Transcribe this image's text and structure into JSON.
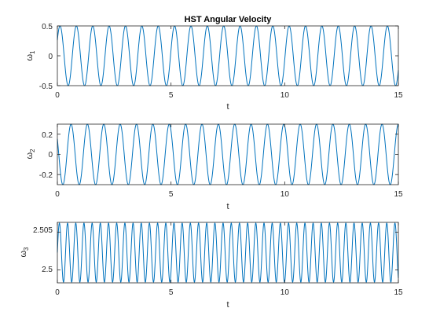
{
  "figure": {
    "background": "#ffffff",
    "axis_color": "#262626",
    "line_color": "#0072bd"
  },
  "chart_data": [
    {
      "type": "line",
      "title": "HST Angular Velocity",
      "xlabel": "t",
      "ylabel": "ω1",
      "ylabel_symbol": "ω",
      "ylabel_subscript": "1",
      "xlim": [
        0,
        15
      ],
      "ylim": [
        -0.5,
        0.5
      ],
      "xticks": [
        0,
        5,
        10,
        15
      ],
      "xtick_labels": [
        "0",
        "5",
        "10",
        "15"
      ],
      "yticks": [
        -0.5,
        0,
        0.5
      ],
      "ytick_labels": [
        "-0.5",
        "0",
        "0.5"
      ],
      "grid": false,
      "series": [
        {
          "kind": "sinusoid",
          "offset": 0,
          "amplitude": 0.5,
          "period": 0.72,
          "phase_at_t0": 0.55,
          "x_start": 0,
          "x_end": 15
        }
      ]
    },
    {
      "type": "line",
      "title": "",
      "xlabel": "t",
      "ylabel": "ω2",
      "ylabel_symbol": "ω",
      "ylabel_subscript": "2",
      "xlim": [
        0,
        15
      ],
      "ylim": [
        -0.3,
        0.3
      ],
      "xticks": [
        0,
        5,
        10,
        15
      ],
      "xtick_labels": [
        "0",
        "5",
        "10",
        "15"
      ],
      "yticks": [
        -0.2,
        0,
        0.2
      ],
      "ytick_labels": [
        "-0.2",
        "0",
        "0.2"
      ],
      "grid": false,
      "series": [
        {
          "kind": "sinusoid",
          "offset": 0,
          "amplitude": 0.3,
          "period": 0.72,
          "phase_at_t0": 2.6,
          "x_start": 0,
          "x_end": 15
        }
      ]
    },
    {
      "type": "line",
      "title": "",
      "xlabel": "t",
      "ylabel": "ω3",
      "ylabel_symbol": "ω",
      "ylabel_subscript": "3",
      "xlim": [
        0,
        15
      ],
      "ylim": [
        2.4983,
        2.5063
      ],
      "xticks": [
        0,
        5,
        10,
        15
      ],
      "xtick_labels": [
        "0",
        "5",
        "10",
        "15"
      ],
      "yticks": [
        2.5,
        2.505
      ],
      "ytick_labels": [
        "2.5",
        "2.505"
      ],
      "grid": false,
      "series": [
        {
          "kind": "sinusoid",
          "offset": 2.5023,
          "amplitude": 0.0039,
          "period": 0.36,
          "phase_at_t0": 0.0,
          "x_start": 0,
          "x_end": 15
        }
      ]
    }
  ]
}
